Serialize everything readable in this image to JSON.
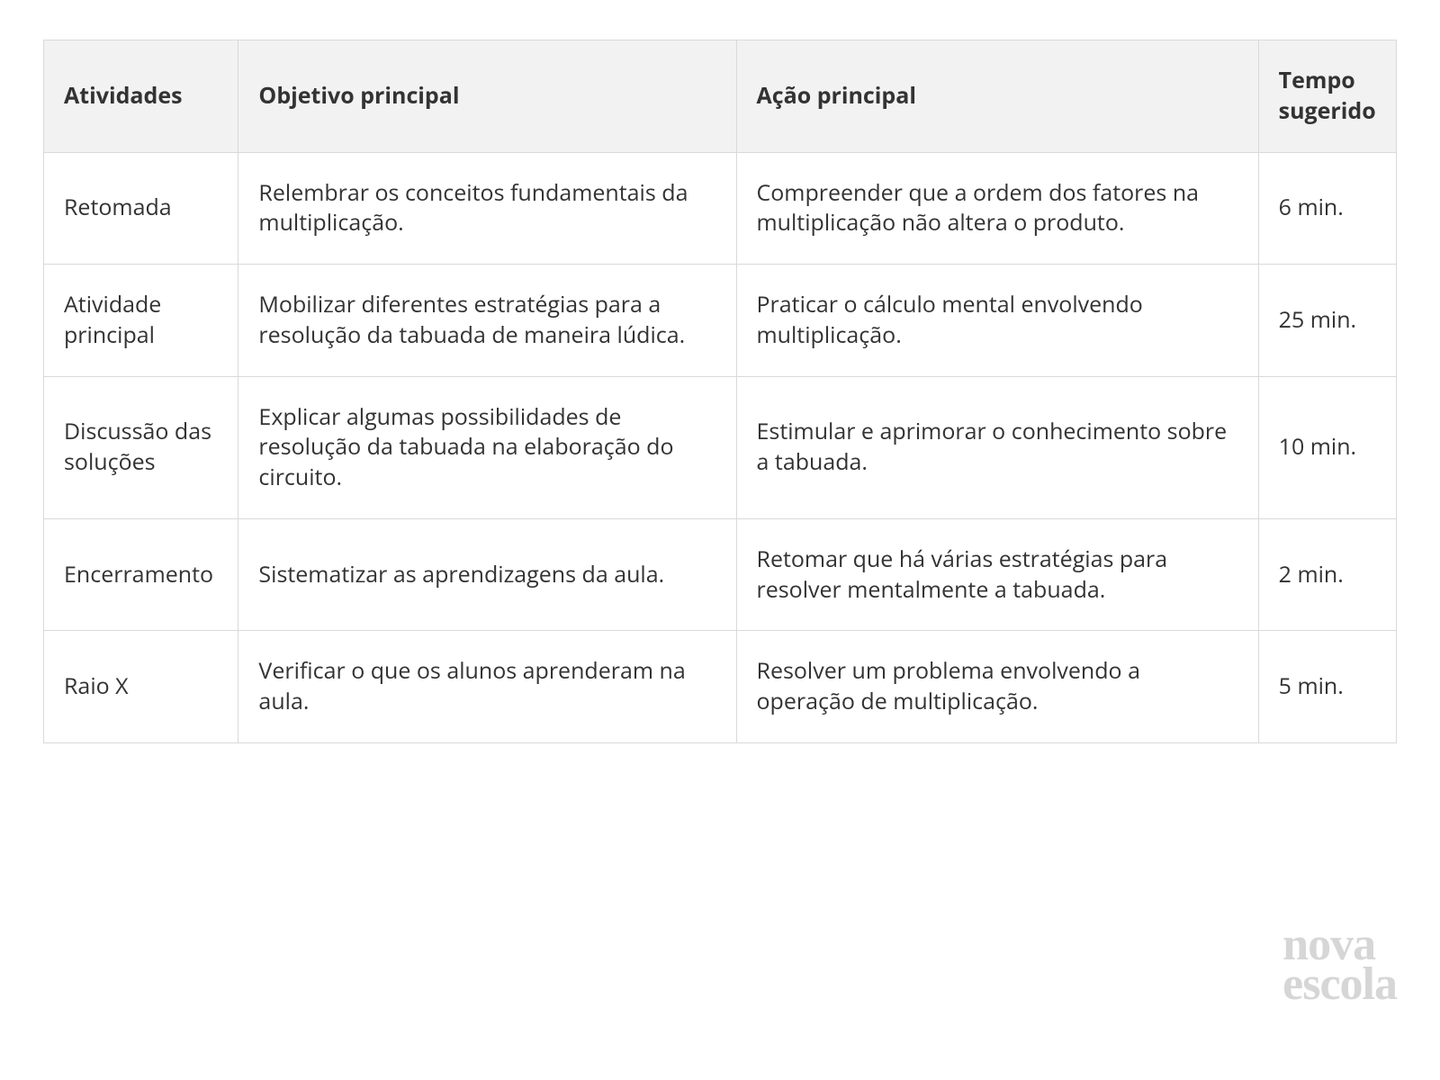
{
  "table": {
    "background_color": "#ffffff",
    "border_color": "#d9d9d9",
    "header_bg": "#f2f2f2",
    "text_color": "#333333",
    "font_size_pt": 19,
    "header_font_weight": 700,
    "column_widths_pct": [
      14.4,
      36.8,
      38.6,
      10.2
    ],
    "columns": [
      "Atividades",
      "Objetivo principal",
      "Ação principal",
      "Tempo sugerido"
    ],
    "rows": [
      {
        "atividade": "Retomada",
        "objetivo": "Relembrar os conceitos fundamentais da multiplicação.",
        "acao": "Compreender que a ordem dos fatores na multiplicação não altera o produto.",
        "tempo": "6 min."
      },
      {
        "atividade": "Atividade principal",
        "objetivo": "Mobilizar diferentes estratégias para a resolução da tabuada de maneira lúdica.",
        "acao": "Praticar o cálculo mental envolvendo multiplicação.",
        "tempo": "25 min."
      },
      {
        "atividade": "Discussão das soluções",
        "objetivo": "Explicar algumas possibilidades de resolução da tabuada na elaboração do circuito.",
        "acao": "Estimular e aprimorar o conhecimento sobre a tabuada.",
        "tempo": "10 min."
      },
      {
        "atividade": "Encerramento",
        "objetivo": "Sistematizar as aprendizagens da aula.",
        "acao": "Retomar que há várias estratégias para resolver mentalmente a tabuada.",
        "tempo": "2 min."
      },
      {
        "atividade": "Raio X",
        "objetivo": "Verificar o que os alunos aprenderam na aula.",
        "acao": "Resolver um problema envolvendo a operação de multiplicação.",
        "tempo": "5 min."
      }
    ]
  },
  "logo": {
    "line1": "nova",
    "line2": "escola",
    "color": "#d6d6d6",
    "font_family": "Georgia, serif",
    "font_size_pt": 39
  }
}
